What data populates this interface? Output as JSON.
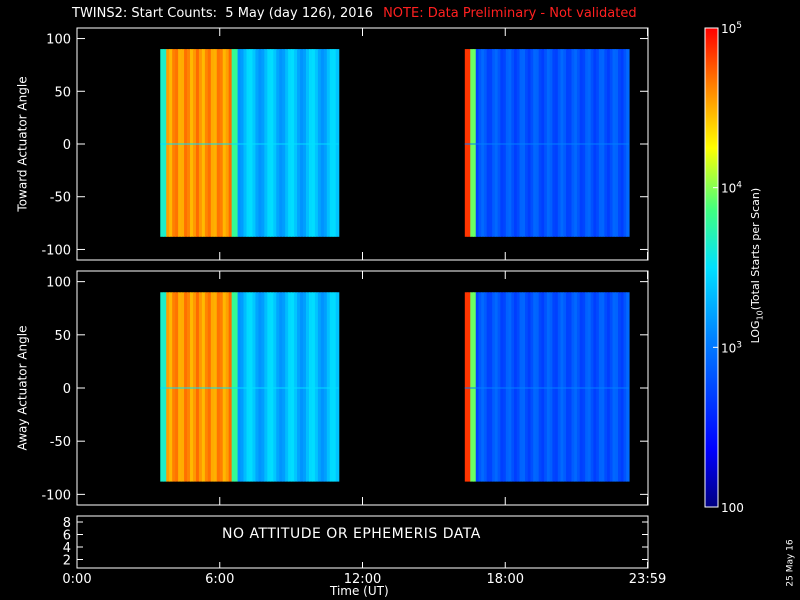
{
  "title": "TWINS2: Start Counts:  5 May (day 126), 2016",
  "note": "NOTE: Data Preliminary - Not validated",
  "chart_data": [
    {
      "type": "heatmap",
      "ylabel": "Toward Actuator Angle",
      "yticks": [
        100,
        50,
        0,
        -50,
        -100
      ],
      "ylim": [
        -110,
        110
      ],
      "data_blocks": [
        {
          "x": [
            3.5,
            11.0
          ],
          "y": [
            -88,
            90
          ]
        },
        {
          "x": [
            16.3,
            23.2
          ],
          "y": [
            -88,
            90
          ]
        }
      ]
    },
    {
      "type": "heatmap",
      "ylabel": "Away Actuator Angle",
      "yticks": [
        100,
        50,
        0,
        -50,
        -100
      ],
      "ylim": [
        -110,
        110
      ],
      "data_blocks": [
        {
          "x": [
            3.5,
            11.0
          ],
          "y": [
            -88,
            90
          ]
        },
        {
          "x": [
            16.3,
            23.2
          ],
          "y": [
            -88,
            90
          ]
        }
      ]
    }
  ],
  "bottom_panel": {
    "yticks": [
      "8",
      "6",
      "4",
      "2"
    ],
    "message": "NO ATTITUDE OR EPHEMERIS DATA"
  },
  "x_axis": {
    "label": "Time (UT)",
    "ticks": [
      {
        "value": 0,
        "label": "0:00"
      },
      {
        "value": 6,
        "label": "6:00"
      },
      {
        "value": 12,
        "label": "12:00"
      },
      {
        "value": 18,
        "label": "18:00"
      },
      {
        "value": 23.98,
        "label": "23:59"
      }
    ],
    "range_hours": [
      0,
      24
    ]
  },
  "colorbar": {
    "label_prefix": "LOG",
    "label_sub": "10",
    "label_suffix": "(Total Starts per Scan)",
    "ticks": [
      {
        "log": 5,
        "label": "10",
        "sup": "5"
      },
      {
        "log": 4,
        "label": "10",
        "sup": "4"
      },
      {
        "log": 3,
        "label": "10",
        "sup": "3"
      },
      {
        "log": 2,
        "label": "100",
        "sup": ""
      }
    ],
    "range_log": [
      2,
      5
    ]
  },
  "date_stamp": "25 May 16",
  "colors": {
    "background": "#000000",
    "axes": "#ffffff",
    "note": "#ff2020"
  }
}
